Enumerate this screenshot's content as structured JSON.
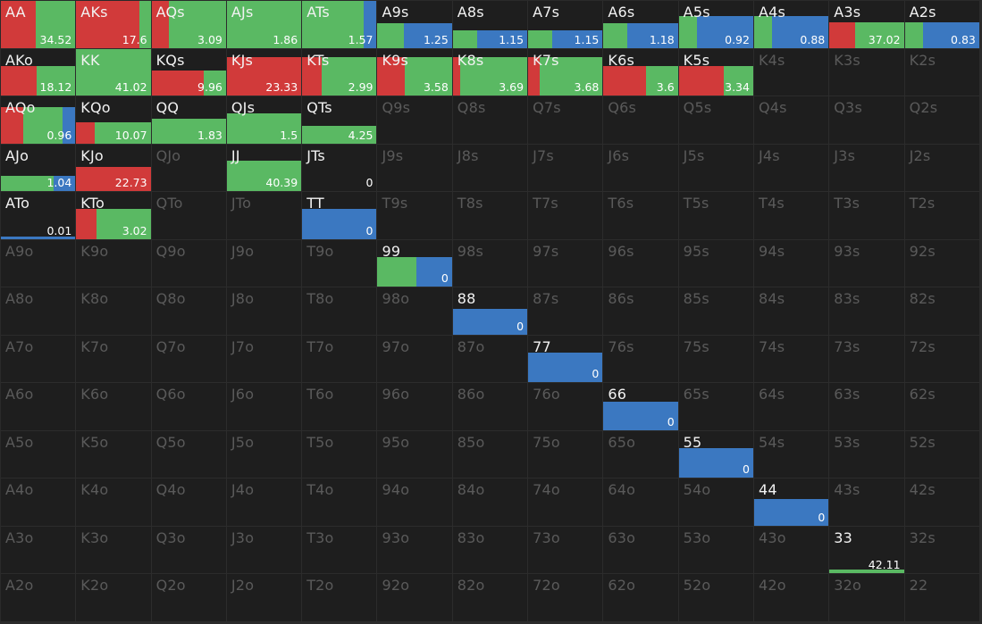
{
  "colors": {
    "red": "#d13a3a",
    "green": "#5ab963",
    "blue": "#3b78c1",
    "empty_text": "#5a5a5a",
    "cell_bg": "#1e1e1e"
  },
  "ranks": [
    "A",
    "K",
    "Q",
    "J",
    "T",
    "9",
    "8",
    "7",
    "6",
    "5",
    "4",
    "3",
    "2"
  ],
  "cells": {
    "AA": {
      "value": "34.52",
      "fill": 1.0,
      "segs": {
        "red": 0.47,
        "green": 0.53,
        "blue": 0
      }
    },
    "AKs": {
      "value": "17.6",
      "fill": 1.0,
      "segs": {
        "red": 0.85,
        "green": 0.15,
        "blue": 0
      }
    },
    "AQs": {
      "value": "3.09",
      "fill": 1.0,
      "segs": {
        "red": 0.23,
        "green": 0.77,
        "blue": 0
      }
    },
    "AJs": {
      "value": "1.86",
      "fill": 1.0,
      "segs": {
        "red": 0,
        "green": 1.0,
        "blue": 0
      }
    },
    "ATs": {
      "value": "1.57",
      "fill": 1.0,
      "segs": {
        "red": 0,
        "green": 0.83,
        "blue": 0.17
      }
    },
    "A9s": {
      "value": "1.25",
      "fill": 0.52,
      "segs": {
        "red": 0,
        "green": 0.35,
        "blue": 0.65
      }
    },
    "A8s": {
      "value": "1.15",
      "fill": 0.37,
      "segs": {
        "red": 0,
        "green": 0.33,
        "blue": 0.67
      }
    },
    "A7s": {
      "value": "1.15",
      "fill": 0.37,
      "segs": {
        "red": 0,
        "green": 0.32,
        "blue": 0.68
      }
    },
    "A6s": {
      "value": "1.18",
      "fill": 0.52,
      "segs": {
        "red": 0,
        "green": 0.32,
        "blue": 0.68
      }
    },
    "A5s": {
      "value": "0.92",
      "fill": 0.67,
      "segs": {
        "red": 0,
        "green": 0.24,
        "blue": 0.76
      }
    },
    "A4s": {
      "value": "0.88",
      "fill": 0.67,
      "segs": {
        "red": 0,
        "green": 0.24,
        "blue": 0.76
      }
    },
    "A3s": {
      "value": "37.02",
      "fill": 0.55,
      "segs": {
        "red": 0.35,
        "green": 0.65,
        "blue": 0
      }
    },
    "A2s": {
      "value": "0.83",
      "fill": 0.55,
      "segs": {
        "red": 0,
        "green": 0.24,
        "blue": 0.76
      }
    },
    "AKo": {
      "value": "18.12",
      "fill": 0.63,
      "segs": {
        "red": 0.48,
        "green": 0.52,
        "blue": 0
      }
    },
    "KK": {
      "value": "41.02",
      "fill": 1.0,
      "segs": {
        "red": 0,
        "green": 1.0,
        "blue": 0
      }
    },
    "KQs": {
      "value": "9.96",
      "fill": 0.53,
      "segs": {
        "red": 0.7,
        "green": 0.3,
        "blue": 0
      }
    },
    "KJs": {
      "value": "23.33",
      "fill": 0.82,
      "segs": {
        "red": 1.0,
        "green": 0,
        "blue": 0
      }
    },
    "KTs": {
      "value": "2.99",
      "fill": 0.82,
      "segs": {
        "red": 0.26,
        "green": 0.74,
        "blue": 0
      }
    },
    "K9s": {
      "value": "3.58",
      "fill": 0.82,
      "segs": {
        "red": 0.37,
        "green": 0.63,
        "blue": 0
      }
    },
    "K8s": {
      "value": "3.69",
      "fill": 0.82,
      "segs": {
        "red": 0.1,
        "green": 0.9,
        "blue": 0
      }
    },
    "K7s": {
      "value": "3.68",
      "fill": 0.82,
      "segs": {
        "red": 0.16,
        "green": 0.84,
        "blue": 0
      }
    },
    "K6s": {
      "value": "3.6",
      "fill": 0.63,
      "segs": {
        "red": 0.57,
        "green": 0.43,
        "blue": 0
      }
    },
    "K5s": {
      "value": "3.34",
      "fill": 0.63,
      "segs": {
        "red": 0.6,
        "green": 0.4,
        "blue": 0
      }
    },
    "K4s": null,
    "K3s": null,
    "K2s": null,
    "AQo": {
      "value": "0.96",
      "fill": 0.78,
      "segs": {
        "red": 0.3,
        "green": 0.53,
        "blue": 0.17
      }
    },
    "KQo": {
      "value": "10.07",
      "fill": 0.44,
      "segs": {
        "red": 0.25,
        "green": 0.75,
        "blue": 0
      }
    },
    "QQ": {
      "value": "1.83",
      "fill": 0.52,
      "segs": {
        "red": 0,
        "green": 1.0,
        "blue": 0
      }
    },
    "QJs": {
      "value": "1.5",
      "fill": 0.63,
      "segs": {
        "red": 0,
        "green": 1.0,
        "blue": 0
      }
    },
    "QTs": {
      "value": "4.25",
      "fill": 0.37,
      "segs": {
        "red": 0,
        "green": 1.0,
        "blue": 0
      }
    },
    "AJo": {
      "value": "1.04",
      "fill": 0.33,
      "segs": {
        "red": 0,
        "green": 0.71,
        "blue": 0.29
      }
    },
    "KJo": {
      "value": "22.73",
      "fill": 0.52,
      "segs": {
        "red": 1.0,
        "green": 0,
        "blue": 0
      }
    },
    "JJ": {
      "value": "40.39",
      "fill": 0.65,
      "segs": {
        "red": 0,
        "green": 1.0,
        "blue": 0
      }
    },
    "JTs": {
      "value": "0",
      "fill": 0,
      "segs": {
        "red": 0,
        "green": 0,
        "blue": 0
      }
    },
    "ATo": {
      "value": "0.01",
      "fill": 0.05,
      "segs": {
        "red": 0,
        "green": 0,
        "blue": 1.0
      }
    },
    "KTo": {
      "value": "3.02",
      "fill": 0.63,
      "segs": {
        "red": 0.27,
        "green": 0.73,
        "blue": 0
      }
    },
    "TT": {
      "value": "0",
      "fill": 0.63,
      "segs": {
        "red": 0,
        "green": 0,
        "blue": 1.0
      }
    },
    "99": {
      "value": "0",
      "fill": 0.63,
      "segs": {
        "red": 0,
        "green": 0.52,
        "blue": 0.48
      }
    },
    "88": {
      "value": "0",
      "fill": 0.55,
      "segs": {
        "red": 0,
        "green": 0,
        "blue": 1.0
      }
    },
    "77": {
      "value": "0",
      "fill": 0.63,
      "segs": {
        "red": 0,
        "green": 0,
        "blue": 1.0
      }
    },
    "66": {
      "value": "0",
      "fill": 0.6,
      "segs": {
        "red": 0,
        "green": 0,
        "blue": 1.0
      }
    },
    "55": {
      "value": "0",
      "fill": 0.63,
      "segs": {
        "red": 0,
        "green": 0,
        "blue": 1.0
      }
    },
    "44": {
      "value": "0",
      "fill": 0.57,
      "segs": {
        "red": 0,
        "green": 0,
        "blue": 1.0
      }
    },
    "33": {
      "value": "42.11",
      "fill": 0.08,
      "segs": {
        "red": 0,
        "green": 1.0,
        "blue": 0
      }
    },
    "22": null
  }
}
